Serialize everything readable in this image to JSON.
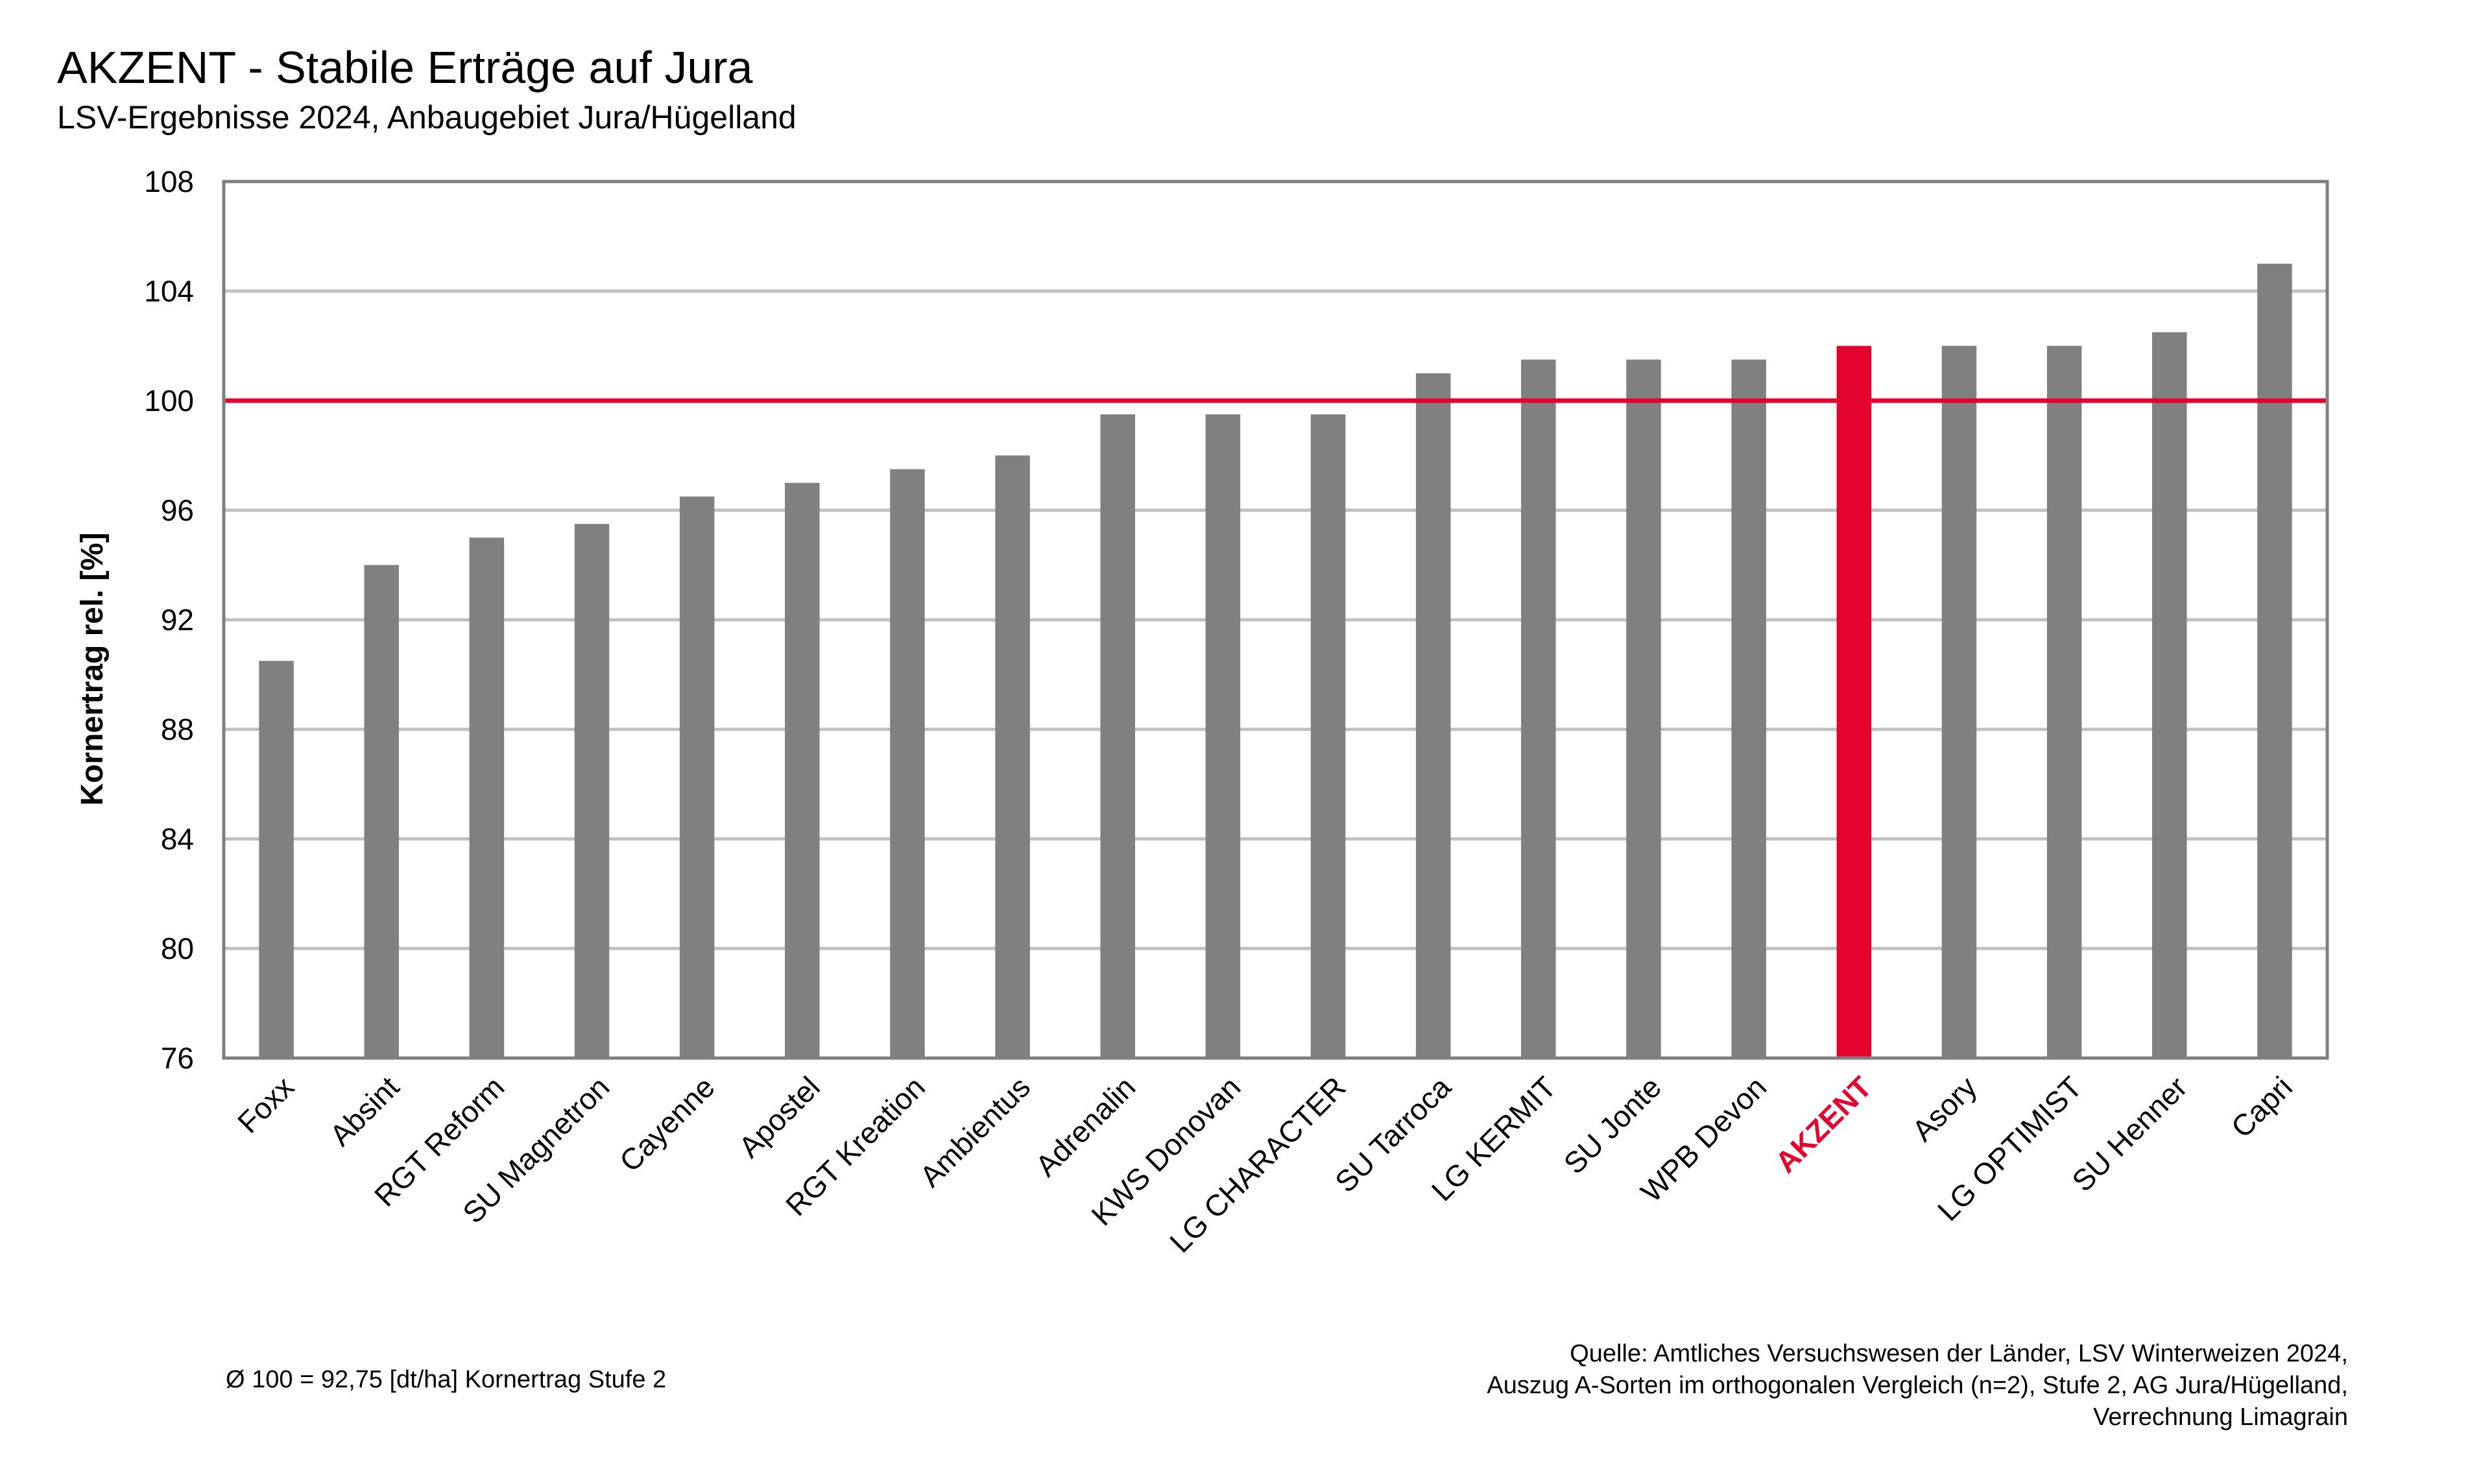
{
  "chart_data": {
    "type": "bar",
    "title": "AKZENT - Stabile Erträge auf Jura",
    "subtitle": "LSV-Ergebnisse 2024, Anbaugebiet Jura/Hügelland",
    "ylabel": "Kornertrag rel. [%]",
    "xlabel": "",
    "ylim": [
      76,
      108
    ],
    "yticks": [
      "76",
      "80",
      "84",
      "88",
      "92",
      "96",
      "100",
      "104",
      "108"
    ],
    "grid": true,
    "reference_line": 100,
    "highlight_category": "AKZENT",
    "categories": [
      "Foxx",
      "Absint",
      "RGT Reform",
      "SU Magnetron",
      "Cayenne",
      "Apostel",
      "RGT Kreation",
      "Ambientus",
      "Adrenalin",
      "KWS Donovan",
      "LG CHARACTER",
      "SU Tarroca",
      "LG KERMIT",
      "SU Jonte",
      "WPB Devon",
      "AKZENT",
      "Asory",
      "LG OPTIMIST",
      "SU Henner",
      "Capri"
    ],
    "values": [
      90.5,
      94,
      95,
      95.5,
      96.5,
      97,
      97.5,
      98,
      99.5,
      99.5,
      99.5,
      101,
      101.5,
      101.5,
      101.5,
      102,
      102,
      102,
      102.5,
      105
    ],
    "colors": {
      "bar": "#808080",
      "highlight": "#e4032e",
      "reference_line": "#e4032e",
      "grid": "#c0c0c0",
      "axis": "#808080"
    }
  },
  "notes": {
    "baseline": "Ø 100 = 92,75 [dt/ha] Kornertrag Stufe 2",
    "source_lines": [
      "Quelle: Amtliches Versuchswesen der Länder, LSV Winterweizen 2024,",
      "Auszug A-Sorten im orthogonalen Vergleich (n=2), Stufe 2, AG Jura/Hügelland,",
      "Verrechnung Limagrain"
    ]
  }
}
